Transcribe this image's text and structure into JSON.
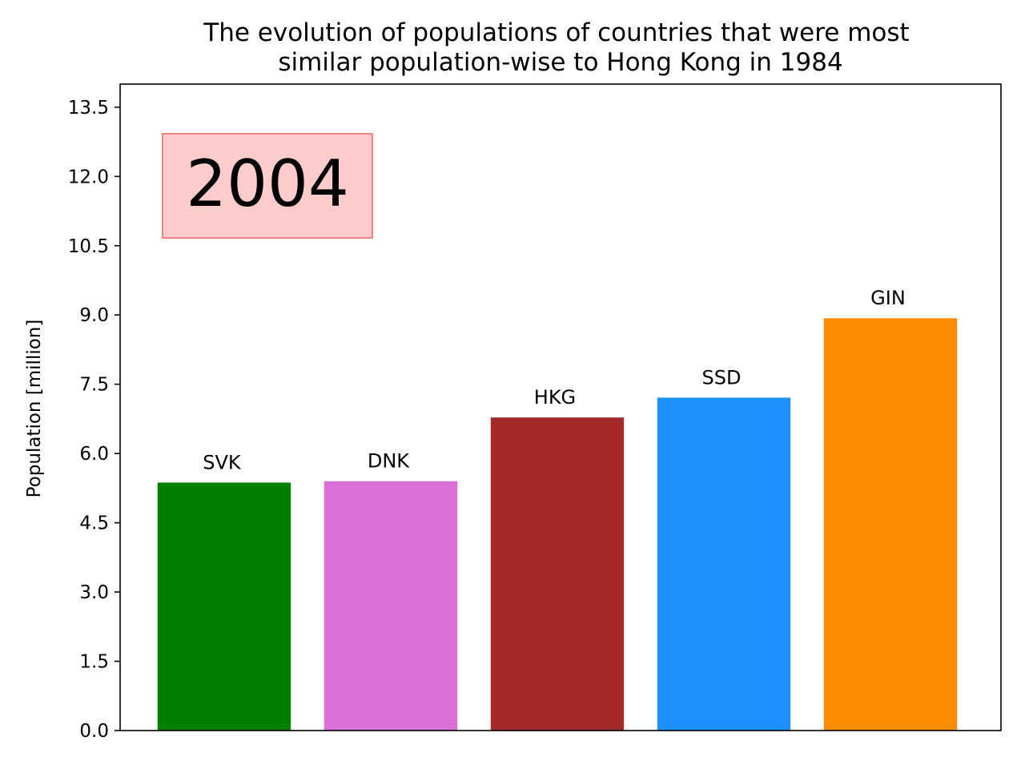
{
  "chart_data": {
    "type": "bar",
    "title_lines": [
      "The evolution of populations of countries that were most",
      "similar population-wise to Hong Kong in 1984"
    ],
    "xlabel": "",
    "ylabel": "Population [million]",
    "ylim": [
      0,
      14.0
    ],
    "yticks": [
      "0.0",
      "1.5",
      "3.0",
      "4.5",
      "6.0",
      "7.5",
      "9.0",
      "10.5",
      "12.0",
      "13.5"
    ],
    "categories": [
      "SVK",
      "DNK",
      "HKG",
      "SSD",
      "GIN"
    ],
    "values": [
      5.37,
      5.4,
      6.78,
      7.21,
      8.93
    ],
    "colors": [
      "#008000",
      "#DA70D6",
      "#A52A2A",
      "#1E90FF",
      "#FF8C00"
    ],
    "year_label": "2004",
    "year_box_color": "#FFCCCC",
    "year_box_edge_color": "#F08080",
    "grid": false
  }
}
